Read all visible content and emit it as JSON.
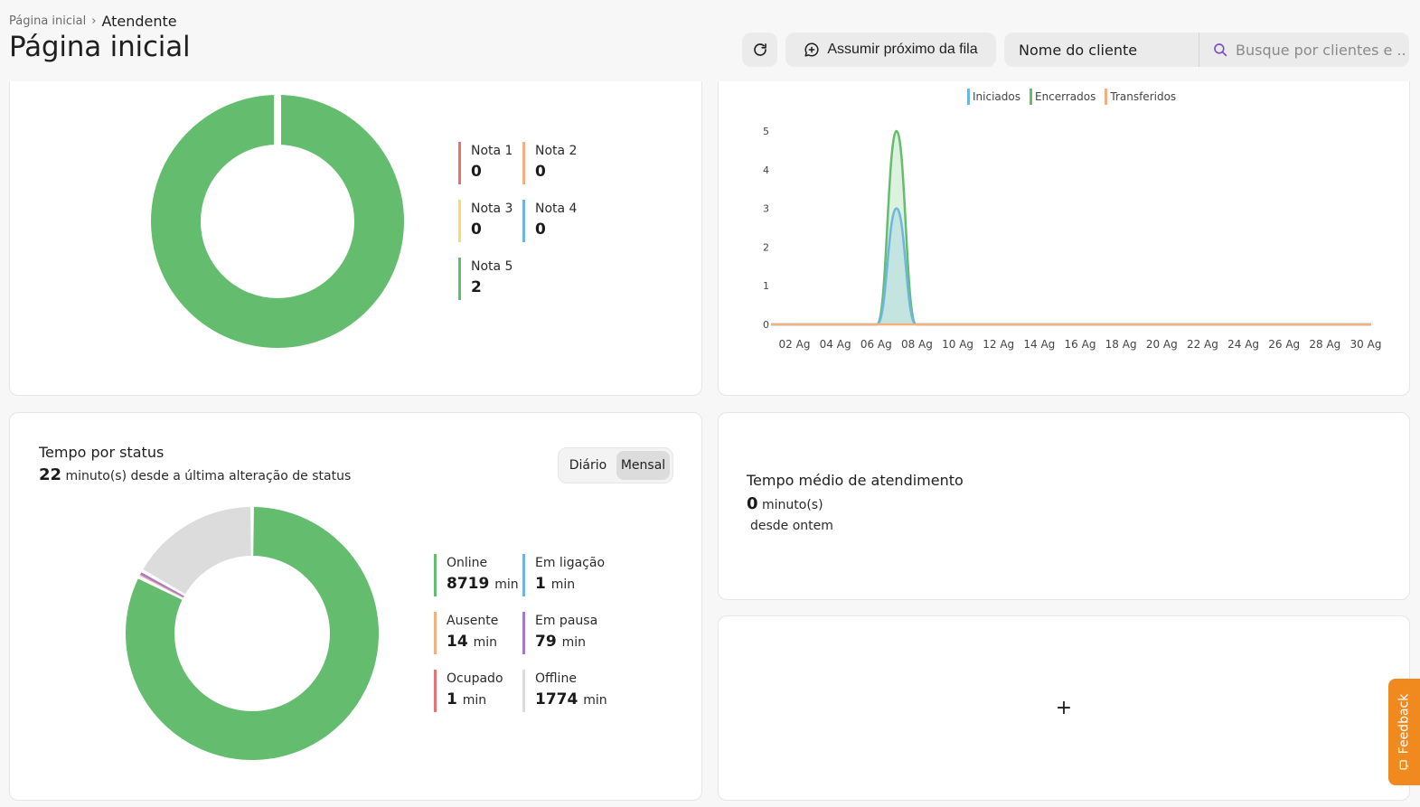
{
  "header": {
    "breadcrumb": {
      "home": "Página inicial",
      "current": "Atendente"
    },
    "title": "Página inicial",
    "refresh_icon": "refresh-icon",
    "next_in_queue_label": "Assumir próximo da fila",
    "client_filter_label": "Nome do cliente",
    "search_placeholder": "Busque por clientes e ..."
  },
  "rating": {
    "legend": [
      {
        "label": "Nota 1",
        "value": "0",
        "color": "#e57373"
      },
      {
        "label": "Nota 2",
        "value": "0",
        "color": "#f6b07e"
      },
      {
        "label": "Nota 3",
        "value": "0",
        "color": "#f4dd6e"
      },
      {
        "label": "Nota 4",
        "value": "0",
        "color": "#6cb6e0"
      },
      {
        "label": "Nota 5",
        "value": "2",
        "color": "#64bd6e"
      }
    ]
  },
  "chart_data": {
    "type": "area",
    "categories": [
      "02 Ag",
      "04 Ag",
      "06 Ag",
      "08 Ag",
      "10 Ag",
      "12 Ag",
      "14 Ag",
      "16 Ag",
      "18 Ag",
      "20 Ag",
      "22 Ag",
      "24 Ag",
      "26 Ag",
      "28 Ag",
      "30 Ag"
    ],
    "y_ticks": [
      "0",
      "1",
      "2",
      "3",
      "4",
      "5"
    ],
    "ylim": [
      0,
      5
    ],
    "grid": false,
    "legend_position": "top",
    "series": [
      {
        "name": "Iniciados",
        "color": "#6cb6e0",
        "peak_date": "07 Ag",
        "peak_value": 3
      },
      {
        "name": "Encerrados",
        "color": "#64bd6e",
        "peak_date": "07 Ag",
        "peak_value": 5
      },
      {
        "name": "Transferidos",
        "color": "#f6b07e",
        "peak_date": "07 Ag",
        "peak_value": 0
      }
    ]
  },
  "status": {
    "title": "Tempo por status",
    "minutes": "22",
    "minutes_suffix": "minuto(s) desde a última alteração de status",
    "toggle": {
      "daily": "Diário",
      "monthly": "Mensal",
      "active": "monthly"
    },
    "legend": [
      {
        "label": "Online",
        "value": "8719",
        "unit": "min",
        "color": "#64bd6e"
      },
      {
        "label": "Em ligação",
        "value": "1",
        "unit": "min",
        "color": "#6cb6e0"
      },
      {
        "label": "Ausente",
        "value": "14",
        "unit": "min",
        "color": "#f6b07e"
      },
      {
        "label": "Em pausa",
        "value": "79",
        "unit": "min",
        "color": "#a678cf"
      },
      {
        "label": "Ocupado",
        "value": "1",
        "unit": "min",
        "color": "#e57373"
      },
      {
        "label": "Offline",
        "value": "1774",
        "unit": "min",
        "color": "#dcdcdc"
      }
    ]
  },
  "avg_time": {
    "title": "Tempo médio de atendimento",
    "value": "0",
    "unit": "minuto(s)",
    "since": "desde ontem"
  },
  "add_widget": {
    "label": "+"
  },
  "feedback": {
    "label": "Feedback"
  }
}
